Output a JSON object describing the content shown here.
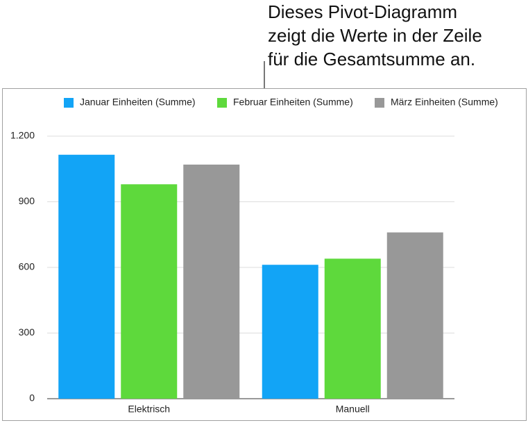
{
  "chart_data": {
    "type": "bar",
    "annotation": [
      "Dieses Pivot-Diagramm",
      "zeigt die Werte in der Zeile",
      "für die Gesamtsumme an."
    ],
    "categories": [
      "Elektrisch",
      "Manuell"
    ],
    "series": [
      {
        "name": "Januar Einheiten (Summe)",
        "color": "#12a4f6",
        "values": [
          1115,
          612
        ]
      },
      {
        "name": "Februar Einheiten (Summe)",
        "color": "#5ed93c",
        "values": [
          980,
          640
        ]
      },
      {
        "name": "März Einheiten (Summe)",
        "color": "#989898",
        "values": [
          1070,
          760
        ]
      }
    ],
    "ylim": [
      0,
      1200
    ],
    "yticks": [
      0,
      300,
      600,
      900,
      {
        "value": 1200,
        "label": "1.200"
      }
    ],
    "grid": true,
    "legend": "top"
  }
}
